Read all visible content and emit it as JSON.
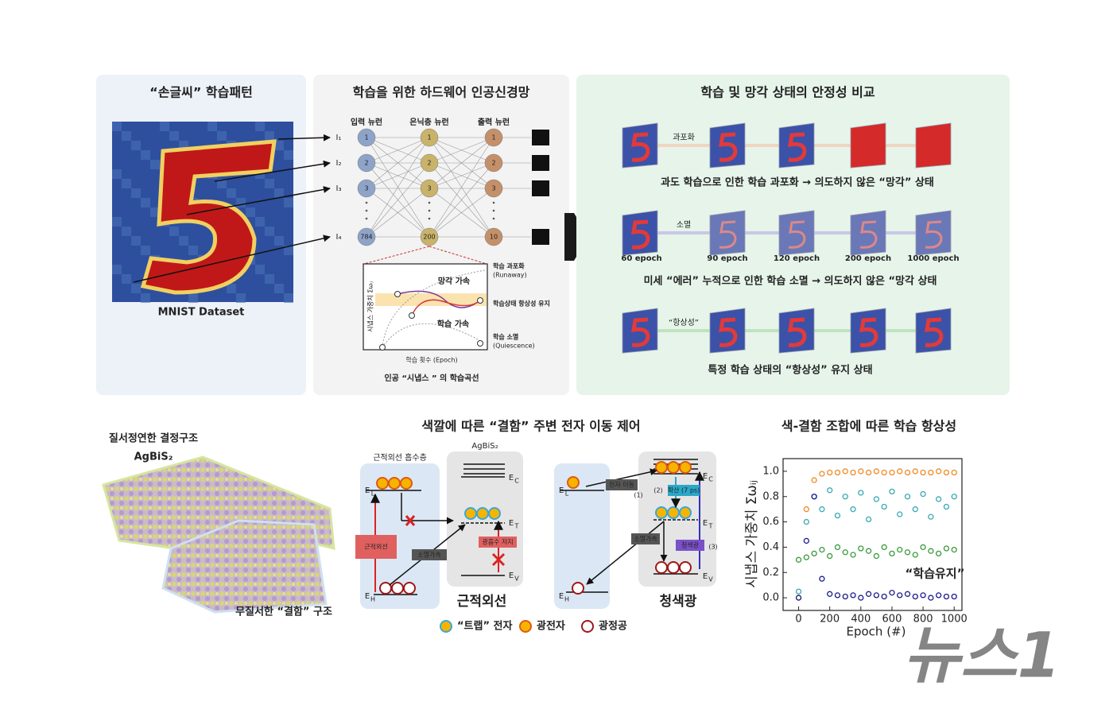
{
  "panel_pattern": {
    "title": "“손글씨” 학습패턴",
    "caption": "MNIST Dataset"
  },
  "panel_network": {
    "title": "학습을 위한 하드웨어 인공신경망",
    "layers": [
      "입력 뉴런",
      "은닉층 뉴런",
      "출력 뉴런"
    ],
    "inputs": [
      "I₁",
      "I₂",
      "I₃",
      "I₄"
    ],
    "node_labels": [
      [
        "1",
        "2",
        "3",
        "784"
      ],
      [
        "1",
        "2",
        "3",
        "200"
      ],
      [
        "1",
        "2",
        "3",
        "10"
      ]
    ],
    "inset": {
      "y_label": "시냅스 가중치 Σωᵢⱼ",
      "x_label": "학습 횟수 (Epoch)",
      "forget": "망각 가속",
      "learn": "학습 가속",
      "runaway": "학습 과포화",
      "runaway_en": "(Runaway)",
      "homeostasis": "학습상태 항상성 유지",
      "quiescence": "학습 소멸",
      "quiescence_en": "(Quiescence)"
    },
    "caption": "인공 “시냅스 ” 의 학습곡선"
  },
  "panel_stability": {
    "title": "학습 및 망각 상태의 안정성 비교",
    "rows": [
      {
        "tag": "과포화",
        "caption": "과도 학습으로 인한 학습 과포화 → 의도하지 않은 “망각” 상태"
      },
      {
        "tag": "소멸",
        "caption": "미세 “에러” 누적으로 인한 학습 소멸 → 의도하지 않은 “망각 상태"
      },
      {
        "tag": "“항상성”",
        "caption": "특정 학습 상태의 “항상성” 유지 상태"
      }
    ],
    "epochs": [
      "60 epoch",
      "90 epoch",
      "120 epoch",
      "200 epoch",
      "1000 epoch"
    ]
  },
  "structure": {
    "ordered": "질서정연한 결정구조",
    "material": "AgBiS₂",
    "disordered": "무질서한 “결함” 구조"
  },
  "transport": {
    "title": "색깔에 따른 “결함” 주변  전자 이동 제어",
    "absorber": "근적외선 흡수층",
    "material": "AgBiS₂",
    "energy_symbol": "E",
    "levels": [
      "C",
      "L",
      "T",
      "V",
      "H"
    ],
    "nir": {
      "label": "근적외선",
      "arrow": "근적외선",
      "decay": "소멸가속",
      "block": "광흡수 저지"
    },
    "blue": {
      "label": "청색광",
      "arrow": "청색광",
      "move": "전자 이동",
      "diffuse": "확산 (7 ps)",
      "decay": "소멸가속",
      "steps": [
        "(1)",
        "(2)",
        "(3)"
      ]
    },
    "legend": [
      "“트랩” 전자",
      "광전자",
      "광정공"
    ]
  },
  "chart_data": {
    "type": "scatter",
    "title": "색-결함 조합에 따른 학습 항상성",
    "y_label": "시냅스 가중치 Σωᵢⱼ",
    "x_label": "Epoch (#)",
    "annotation": "“학습유지”",
    "x": [
      0,
      50,
      100,
      150,
      200,
      250,
      300,
      350,
      400,
      450,
      500,
      550,
      600,
      650,
      700,
      750,
      800,
      850,
      900,
      950,
      1000
    ],
    "series": [
      {
        "color": "#f08a24",
        "values": [
          0.0,
          0.7,
          0.93,
          0.98,
          0.99,
          0.99,
          1.0,
          0.99,
          1.0,
          0.99,
          1.0,
          0.99,
          0.99,
          1.0,
          0.99,
          1.0,
          0.99,
          0.99,
          1.0,
          0.99,
          0.99
        ]
      },
      {
        "color": "#3aa8b4",
        "values": [
          0.05,
          0.6,
          0.8,
          0.7,
          0.85,
          0.65,
          0.8,
          0.7,
          0.83,
          0.62,
          0.78,
          0.72,
          0.84,
          0.66,
          0.8,
          0.7,
          0.82,
          0.64,
          0.78,
          0.72,
          0.8
        ]
      },
      {
        "color": "#3a9a3a",
        "values": [
          0.3,
          0.32,
          0.35,
          0.38,
          0.33,
          0.4,
          0.36,
          0.34,
          0.39,
          0.37,
          0.33,
          0.4,
          0.35,
          0.38,
          0.36,
          0.34,
          0.4,
          0.37,
          0.35,
          0.39,
          0.38
        ]
      },
      {
        "color": "#1c1c8c",
        "values": [
          0.0,
          0.45,
          0.8,
          0.15,
          0.03,
          0.02,
          0.01,
          0.02,
          0.0,
          0.03,
          0.02,
          0.01,
          0.04,
          0.02,
          0.03,
          0.01,
          0.02,
          0.0,
          0.02,
          0.01,
          0.01
        ]
      }
    ],
    "xlim": [
      -100,
      1050
    ],
    "ylim": [
      -0.1,
      1.1
    ],
    "xticks": [
      0,
      200,
      400,
      600,
      800,
      1000
    ],
    "yticks": [
      {
        "value": 0,
        "label": "0.0"
      },
      {
        "value": 0.2,
        "label": "0.2"
      },
      {
        "value": 0.4,
        "label": "0.4"
      },
      {
        "value": 0.6,
        "label": "0.6"
      },
      {
        "value": 0.8,
        "label": "0.8"
      },
      {
        "value": 1,
        "label": "1.0"
      }
    ]
  },
  "watermark": "뉴스1"
}
